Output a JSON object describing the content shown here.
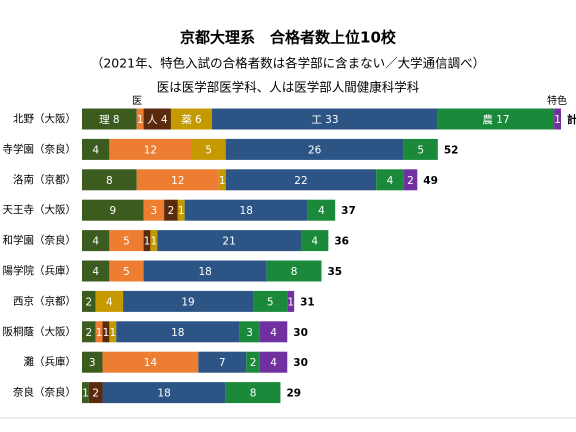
{
  "chart_data": {
    "type": "stacked-barh",
    "title": "京都大理系　合格者数上位10校",
    "subtitle": "（2021年、特色入試の合格者数は各学部に含まない／大学通信調べ）",
    "note": "医は医学部医学科、人は医学部人間健康科学科",
    "annotations": [
      "医",
      "特色"
    ],
    "categories": [
      "北野（大阪）",
      "寺学園（奈良）",
      "洛南（京都）",
      "天王寺（大阪）",
      "和学園（奈良）",
      "陽学院（兵庫）",
      "西京（京都）",
      "阪桐蔭（大阪）",
      "灘（兵庫）",
      "奈良（奈良）"
    ],
    "xlim": [
      0,
      70
    ],
    "series": [
      {
        "color": "#3b5b1f",
        "values": [
          8,
          4,
          8,
          9,
          4,
          4,
          2,
          2,
          3,
          1
        ],
        "value_labels": [
          "理 8",
          "4",
          "8",
          "9",
          "4",
          "4",
          "2",
          "2",
          "3",
          "1"
        ]
      },
      {
        "color": "#ed7d31",
        "values": [
          1,
          12,
          12,
          3,
          5,
          5,
          0,
          1,
          14,
          0
        ],
        "value_labels": [
          "1",
          "12",
          "12",
          "3",
          "5",
          "5",
          null,
          "1",
          "14",
          null
        ]
      },
      {
        "color": "#5b2a0c",
        "values": [
          4,
          0,
          0,
          2,
          1,
          0,
          0,
          1,
          0,
          2
        ],
        "value_labels": [
          "人 4",
          null,
          null,
          "2",
          "1",
          null,
          null,
          "1",
          null,
          "2"
        ]
      },
      {
        "color": "#c49a00",
        "values": [
          6,
          5,
          1,
          1,
          1,
          0,
          4,
          1,
          0,
          0
        ],
        "value_labels": [
          "薬 6",
          "5",
          "1",
          "1",
          "1",
          null,
          "4",
          "1",
          null,
          null
        ]
      },
      {
        "color": "#2c5585",
        "values": [
          33,
          26,
          22,
          18,
          21,
          18,
          19,
          18,
          7,
          18
        ],
        "value_labels": [
          "工 33",
          "26",
          "22",
          "18",
          "21",
          "18",
          "19",
          "18",
          "7",
          "18"
        ]
      },
      {
        "color": "#1a8a3a",
        "values": [
          17,
          5,
          4,
          4,
          4,
          8,
          5,
          3,
          2,
          8
        ],
        "value_labels": [
          "農 17",
          "5",
          "4",
          "4",
          "4",
          "8",
          "5",
          "3",
          "2",
          "8"
        ]
      },
      {
        "color": "#7030a0",
        "values": [
          1,
          0,
          2,
          0,
          0,
          0,
          1,
          4,
          4,
          0
        ],
        "value_labels": [
          "1",
          null,
          "2",
          null,
          null,
          null,
          "1",
          "4",
          "4",
          null
        ]
      }
    ],
    "total_labels": [
      "計",
      "52",
      "49",
      "37",
      "36",
      "35",
      "31",
      "30",
      "30",
      "29"
    ]
  }
}
